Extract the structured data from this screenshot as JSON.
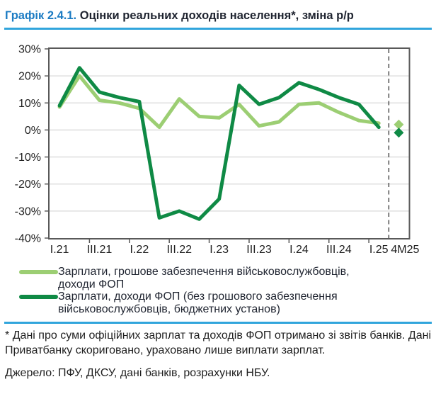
{
  "title": {
    "prefix": "Графік 2.4.1.",
    "rest": "Оцінки реальних доходів населення*, зміна р/р"
  },
  "colors": {
    "accent_blue": "#1B7BC3",
    "rule_blue": "#31A5DC",
    "light_green": "#9CCE73",
    "dark_green": "#0F8A45",
    "grid_gray": "#D9D9D9",
    "axis_gray": "#595959",
    "text_dark": "#1F1F1F"
  },
  "chart_data": {
    "type": "line",
    "categories": [
      "I.21",
      "II.21",
      "III.21",
      "IV.21",
      "I.22",
      "II.22",
      "III.22",
      "IV.22",
      "I.23",
      "II.23",
      "III.23",
      "IV.23",
      "I.24",
      "II.24",
      "III.24",
      "IV.24",
      "I.25",
      "4M25"
    ],
    "labeled_indices": [
      0,
      2,
      4,
      6,
      8,
      10,
      12,
      14,
      16,
      17
    ],
    "x_labels": [
      "I.21",
      "III.21",
      "I.22",
      "III.22",
      "I.23",
      "III.23",
      "I.24",
      "III.24",
      "I.25",
      "4M25"
    ],
    "ylim": [
      -40,
      30
    ],
    "y_ticks": [
      "30%",
      "20%",
      "10%",
      "0%",
      "-10%",
      "-20%",
      "-30%",
      "-40%"
    ],
    "grid": true,
    "separator_before_category": "4M25",
    "series": [
      {
        "name": "Зарплати, грошове забезпечення військовослужбовців, доходи ФОП",
        "color_key": "light_green",
        "values": [
          8.5,
          20,
          11,
          10,
          8,
          1,
          11.5,
          5,
          4.5,
          9.5,
          1.5,
          3,
          9.5,
          10,
          6.5,
          3.5,
          2.5
        ],
        "marker_category": "4M25",
        "marker_value": 2
      },
      {
        "name": "Зарплати, доходи ФОП (без грошового забезпечення військовослужбовців, бюджетних установ)",
        "color_key": "dark_green",
        "values": [
          9,
          23,
          14,
          12,
          10.5,
          -32.5,
          -30,
          -33,
          -25.5,
          16.5,
          9.5,
          12,
          17.5,
          15,
          12,
          9.5,
          1
        ],
        "marker_category": "4M25",
        "marker_value": -1
      }
    ]
  },
  "legend": {
    "items": [
      {
        "label": "Зарплати, грошове забезпечення військовослужбовців, доходи ФОП",
        "color_key": "light_green"
      },
      {
        "label": "Зарплати, доходи ФОП (без грошового забезпечення військовослужбовців, бюджетних установ)",
        "color_key": "dark_green"
      }
    ]
  },
  "footnote": "* Дані про суми офіційних зарплат та доходів ФОП отримано зі звітів банків. Дані Приватбанку скориговано, ураховано лише виплати зарплат.",
  "source": "Джерело: ПФУ, ДКСУ, дані банків, розрахунки НБУ."
}
